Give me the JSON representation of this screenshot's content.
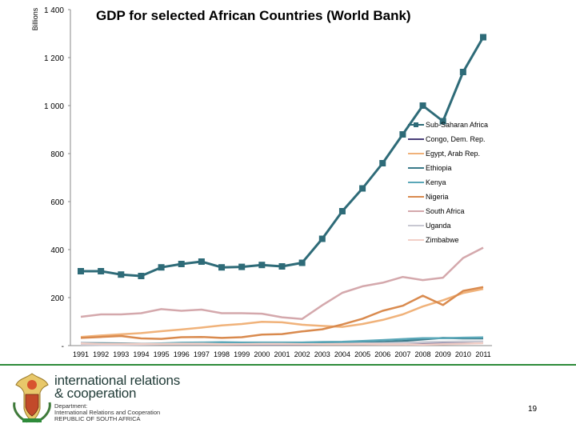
{
  "slide": {
    "title": "GDP for selected African Countries (World Bank)",
    "page_number": "19",
    "org": {
      "line1": "international relations",
      "line2": "& cooperation",
      "dept1": "Department:",
      "dept2": "International Relations and Cooperation",
      "dept3": "REPUBLIC OF SOUTH AFRICA"
    },
    "colors": {
      "footer_rule": "#2e8b3a",
      "org_text": "#1f3a36"
    }
  },
  "chart_data": {
    "type": "line",
    "title": "GDP for selected African Countries (World Bank)",
    "ylabel": "Billions",
    "xlabel": "",
    "ylim": [
      0,
      1400
    ],
    "yticks": [
      {
        "value": 0,
        "label": "-"
      },
      {
        "value": 200,
        "label": "200"
      },
      {
        "value": 400,
        "label": "400"
      },
      {
        "value": 600,
        "label": "600"
      },
      {
        "value": 800,
        "label": "800"
      },
      {
        "value": 1000,
        "label": "1 000"
      },
      {
        "value": 1200,
        "label": "1 200"
      },
      {
        "value": 1400,
        "label": "1 400"
      }
    ],
    "categories": [
      "1991",
      "1992",
      "1993",
      "1994",
      "1995",
      "1996",
      "1997",
      "1998",
      "1999",
      "2000",
      "2001",
      "2002",
      "2003",
      "2004",
      "2005",
      "2006",
      "2007",
      "2008",
      "2009",
      "2010",
      "2011"
    ],
    "grid": false,
    "legend_position": "right",
    "series": [
      {
        "name": "Sub-Saharan Africa",
        "color": "#2e6b78",
        "marker": "square",
        "values": [
          310,
          310,
          296,
          290,
          326,
          340,
          350,
          326,
          328,
          336,
          330,
          345,
          445,
          560,
          655,
          760,
          880,
          1000,
          935,
          1140,
          1285
        ]
      },
      {
        "name": "Congo, Dem. Rep.",
        "color": "#4a3f7a",
        "marker": "none",
        "values": [
          10,
          9,
          8,
          7,
          6,
          6,
          6,
          6,
          5,
          5,
          5,
          5,
          6,
          7,
          7,
          9,
          10,
          11,
          11,
          13,
          15
        ]
      },
      {
        "name": "Egypt, Arab Rep.",
        "color": "#f0b27a",
        "marker": "none",
        "values": [
          36,
          42,
          47,
          52,
          60,
          67,
          75,
          84,
          90,
          99,
          97,
          87,
          82,
          78,
          90,
          107,
          130,
          163,
          189,
          219,
          236
        ]
      },
      {
        "name": "Ethiopia",
        "color": "#3b7a8a",
        "marker": "none",
        "values": [
          10,
          10,
          9,
          8,
          8,
          8,
          8,
          8,
          8,
          8,
          8,
          8,
          8,
          10,
          12,
          15,
          19,
          26,
          32,
          30,
          30
        ]
      },
      {
        "name": "Kenya",
        "color": "#5aa7b8",
        "marker": "none",
        "values": [
          8,
          8,
          6,
          7,
          9,
          12,
          13,
          14,
          13,
          13,
          13,
          13,
          15,
          16,
          19,
          23,
          27,
          31,
          31,
          33,
          34
        ]
      },
      {
        "name": "Nigeria",
        "color": "#d98a4e",
        "marker": "none",
        "values": [
          32,
          36,
          40,
          30,
          28,
          35,
          36,
          32,
          35,
          46,
          48,
          59,
          68,
          88,
          112,
          145,
          166,
          208,
          169,
          228,
          244
        ]
      },
      {
        "name": "South Africa",
        "color": "#d4a8ac",
        "marker": "none",
        "values": [
          120,
          130,
          130,
          135,
          152,
          145,
          150,
          135,
          135,
          133,
          118,
          111,
          168,
          220,
          247,
          262,
          286,
          273,
          283,
          365,
          408
        ]
      },
      {
        "name": "Uganda",
        "color": "#c8c8d2",
        "marker": "none",
        "values": [
          4,
          3,
          3,
          4,
          6,
          6,
          6,
          6,
          6,
          6,
          6,
          6,
          6,
          7,
          9,
          10,
          12,
          14,
          16,
          17,
          17
        ]
      },
      {
        "name": "Zimbabwe",
        "color": "#f2cfc7",
        "marker": "none",
        "values": [
          9,
          7,
          7,
          7,
          7,
          8,
          8,
          6,
          6,
          7,
          7,
          6,
          6,
          6,
          6,
          5,
          5,
          4,
          6,
          8,
          10
        ]
      }
    ]
  }
}
